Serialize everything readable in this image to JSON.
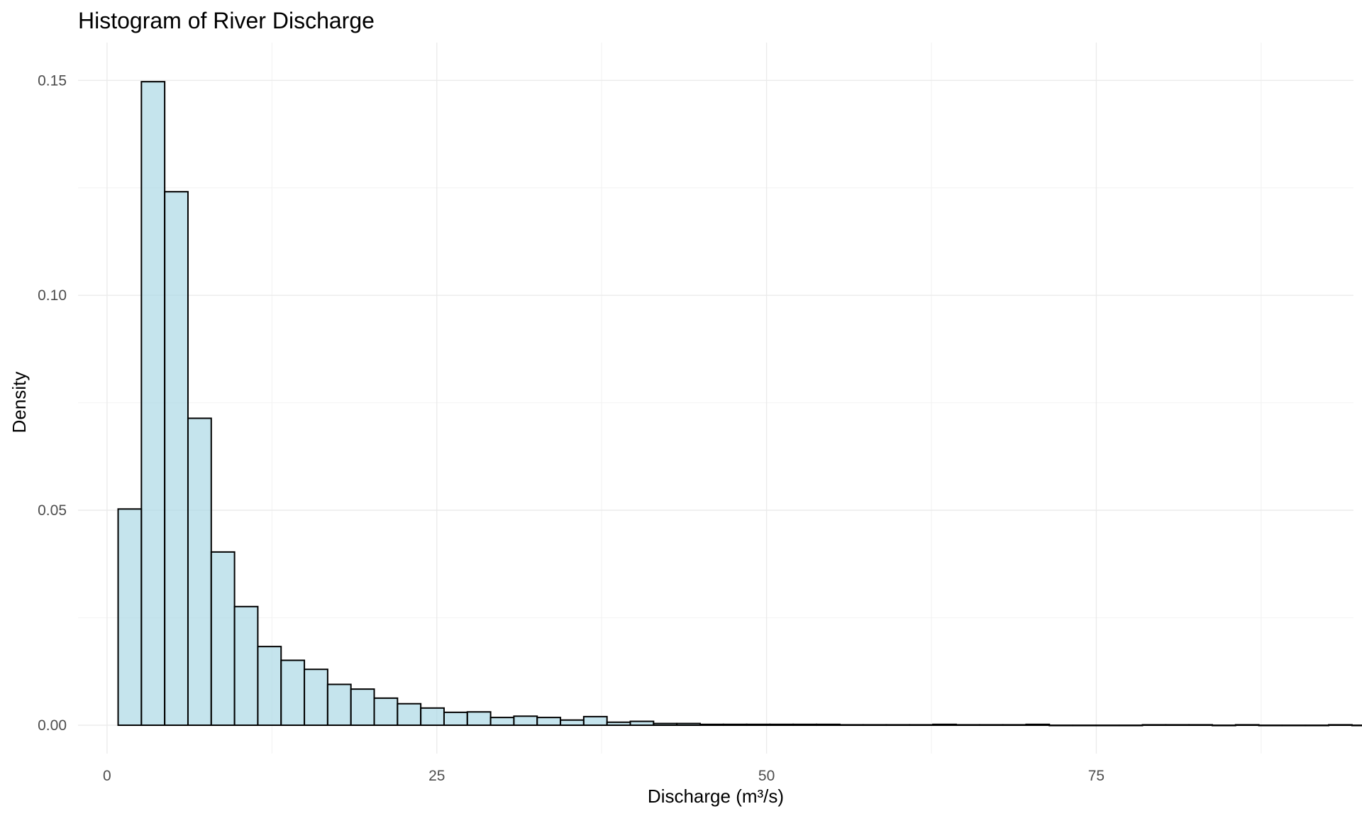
{
  "chart_data": {
    "type": "bar",
    "title": "Histogram of River Discharge",
    "xlabel": "Discharge (m³/s)",
    "ylabel": "Density",
    "xlim": [
      -2.2,
      94.5
    ],
    "ylim": [
      -0.0066,
      0.1588
    ],
    "x_major_ticks": [
      0,
      25,
      50,
      75
    ],
    "x_tick_labels": [
      "0",
      "25",
      "50",
      "75"
    ],
    "x_minor_ticks": [
      12.5,
      37.5,
      62.5,
      87.5
    ],
    "y_major_ticks": [
      0,
      0.05,
      0.1,
      0.15
    ],
    "y_tick_labels": [
      "0.00",
      "0.05",
      "0.10",
      "0.15"
    ],
    "y_minor_ticks": [
      0.025,
      0.075,
      0.125
    ],
    "grid": true,
    "legend": "none",
    "bin_width": 1.765,
    "bin_start": 0.84,
    "values": [
      0.0503,
      0.1497,
      0.1241,
      0.0714,
      0.0403,
      0.0276,
      0.0183,
      0.0151,
      0.013,
      0.0095,
      0.0084,
      0.0063,
      0.005,
      0.004,
      0.003,
      0.0031,
      0.0018,
      0.0021,
      0.0018,
      0.0012,
      0.002,
      0.0007,
      0.0009,
      0.0004,
      0.0004,
      0.0002,
      0.0002,
      0.0002,
      0.0002,
      0.0002,
      0.0002,
      0.0001,
      0.0001,
      0.0001,
      0.0001,
      0.0002,
      0.0001,
      0.0001,
      0.0001,
      0.0002,
      0.0,
      0.0,
      0.0,
      0.0,
      0.0001,
      0.0001,
      0.0001,
      0.0,
      0.0001,
      0.0,
      0.0,
      0.0,
      0.0001,
      0.0,
      0.0,
      0.0,
      0.0001
    ],
    "bar_fill": "#add8e6",
    "bar_outline": "#000000"
  }
}
